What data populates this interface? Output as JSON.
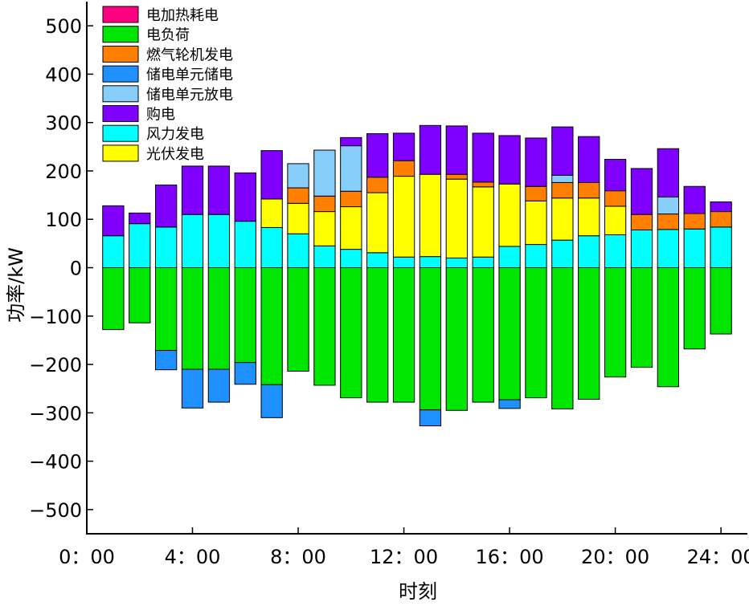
{
  "chart_data": {
    "type": "bar",
    "stacked": true,
    "xlabel": "时刻",
    "ylabel": "功率/kW",
    "ylim": [
      -550,
      550
    ],
    "xlim": [
      0,
      25
    ],
    "y_ticks": [
      500,
      400,
      300,
      200,
      100,
      0,
      -100,
      -200,
      -300,
      -400,
      -500
    ],
    "y_tick_labels": [
      "500",
      "400",
      "300",
      "200",
      "100",
      "0",
      "−100",
      "−200",
      "−300",
      "−400",
      "−500"
    ],
    "x_ticks": [
      0,
      4,
      8,
      12,
      16,
      20,
      24
    ],
    "x_tick_labels": [
      "0：00",
      "4：00",
      "8：00",
      "12：00",
      "16：00",
      "20：00",
      "24：00"
    ],
    "hours": [
      1,
      2,
      3,
      4,
      5,
      6,
      7,
      8,
      9,
      10,
      11,
      12,
      13,
      14,
      15,
      16,
      17,
      18,
      19,
      20,
      21,
      22,
      23,
      24
    ],
    "grid": false,
    "legend_position": "top-left",
    "series": [
      {
        "name": "电加热耗电",
        "color": "#ff0080",
        "values": [
          0,
          0,
          0,
          0,
          0,
          0,
          0,
          0,
          0,
          0,
          0,
          0,
          0,
          0,
          0,
          0,
          0,
          0,
          0,
          0,
          0,
          0,
          0,
          0
        ]
      },
      {
        "name": "电负荷",
        "color": "#00e600",
        "values": [
          -128,
          -114,
          -171,
          -210,
          -210,
          -196,
          -242,
          -214,
          -243,
          -269,
          -278,
          -278,
          -294,
          -295,
          -278,
          -273,
          -269,
          -292,
          -272,
          -226,
          -206,
          -246,
          -168,
          -137
        ]
      },
      {
        "name": "燃气轮机发电",
        "color": "#ff7f00",
        "values": [
          0,
          0,
          0,
          0,
          0,
          0,
          0,
          32,
          32,
          32,
          32,
          32,
          0,
          10,
          10,
          0,
          30,
          32,
          32,
          32,
          32,
          32,
          32,
          32
        ]
      },
      {
        "name": "储电单元储电",
        "color": "#1e90ff",
        "values": [
          0,
          0,
          -40,
          -80,
          -68,
          -45,
          -68,
          0,
          0,
          0,
          0,
          0,
          -33,
          0,
          0,
          -18,
          0,
          0,
          0,
          0,
          0,
          0,
          0,
          0
        ]
      },
      {
        "name": "储电单元放电",
        "color": "#87cefa",
        "values": [
          0,
          0,
          0,
          0,
          0,
          0,
          0,
          50,
          95,
          94,
          0,
          0,
          0,
          0,
          0,
          0,
          0,
          15,
          0,
          0,
          0,
          35,
          0,
          0
        ]
      },
      {
        "name": "购电",
        "color": "#8000ff",
        "values": [
          62,
          22,
          87,
          100,
          100,
          100,
          100,
          0,
          0,
          17,
          90,
          57,
          101,
          100,
          101,
          100,
          100,
          100,
          95,
          65,
          95,
          100,
          56,
          20
        ]
      },
      {
        "name": "风力发电",
        "color": "#00ffff",
        "values": [
          66,
          91,
          84,
          110,
          110,
          96,
          83,
          70,
          45,
          38,
          31,
          22,
          23,
          20,
          22,
          44,
          48,
          57,
          66,
          68,
          78,
          79,
          80,
          84
        ]
      },
      {
        "name": "光伏发电",
        "color": "#ffff00",
        "values": [
          0,
          0,
          0,
          0,
          0,
          0,
          59,
          63,
          71,
          88,
          124,
          167,
          170,
          163,
          145,
          129,
          90,
          87,
          78,
          59,
          0,
          0,
          0,
          0
        ]
      }
    ]
  }
}
